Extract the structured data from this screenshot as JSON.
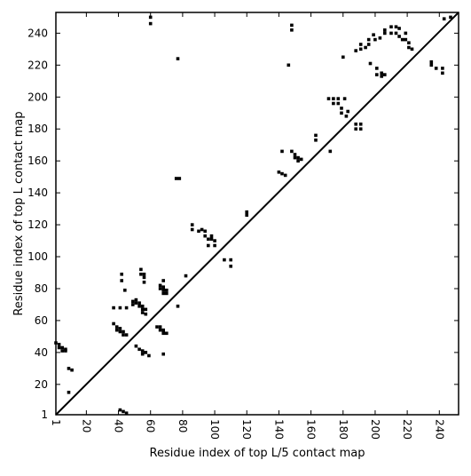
{
  "chart_data": {
    "type": "scatter",
    "title": "",
    "xlabel": "Residue index of top L/5 contact map",
    "ylabel": "Residue index of top L contact map",
    "xlim": [
      1,
      252
    ],
    "ylim": [
      1,
      253
    ],
    "x_ticks": [
      1,
      20,
      40,
      60,
      80,
      100,
      120,
      140,
      160,
      180,
      200,
      220,
      240
    ],
    "y_ticks": [
      1,
      20,
      40,
      60,
      80,
      100,
      120,
      140,
      160,
      180,
      200,
      220,
      240
    ],
    "x_tick_labels": [
      "1",
      "20",
      "40",
      "60",
      "80",
      "100",
      "120",
      "140",
      "160",
      "180",
      "200",
      "220",
      "240"
    ],
    "y_tick_labels": [
      "1",
      "20",
      "40",
      "60",
      "80",
      "100",
      "120",
      "140",
      "160",
      "180",
      "200",
      "220",
      "240"
    ],
    "x_tick_label_rotation": -90,
    "grid": false,
    "legend": "none",
    "diagonal_line": true,
    "colors": {
      "marker": "#000000",
      "background": "#ffffff",
      "diagonal": "#000000"
    },
    "series": [
      {
        "region": "above-diagonal",
        "points": [
          [
            60,
            250
          ],
          [
            60,
            246
          ],
          [
            148,
            245
          ],
          [
            148,
            242
          ],
          [
            77,
            224
          ],
          [
            146,
            220
          ],
          [
            180,
            225
          ],
          [
            200,
            236
          ],
          [
            203,
            237
          ],
          [
            206,
            240
          ],
          [
            206,
            242
          ],
          [
            210,
            244
          ],
          [
            210,
            240
          ],
          [
            213,
            244
          ],
          [
            213,
            240
          ],
          [
            215,
            238
          ],
          [
            217,
            236
          ],
          [
            219,
            236
          ],
          [
            221,
            234
          ],
          [
            221,
            231
          ],
          [
            223,
            230
          ],
          [
            215,
            243
          ],
          [
            219,
            240
          ],
          [
            235,
            222
          ],
          [
            235,
            220
          ],
          [
            238,
            218
          ],
          [
            242,
            218
          ],
          [
            242,
            215
          ],
          [
            247,
            250
          ],
          [
            243,
            249
          ],
          [
            188,
            229
          ],
          [
            191,
            230
          ],
          [
            191,
            233
          ],
          [
            194,
            231
          ],
          [
            196,
            233
          ],
          [
            197,
            221
          ],
          [
            201,
            218
          ],
          [
            204,
            215
          ],
          [
            206,
            214
          ],
          [
            204,
            213
          ],
          [
            201,
            214
          ],
          [
            196,
            236
          ],
          [
            199,
            239
          ],
          [
            171,
            199
          ],
          [
            174,
            199
          ],
          [
            174,
            196
          ],
          [
            177,
            196
          ],
          [
            177,
            199
          ],
          [
            179,
            193
          ],
          [
            181,
            199
          ],
          [
            179,
            190
          ],
          [
            183,
            191
          ],
          [
            182,
            188
          ],
          [
            188,
            183
          ],
          [
            188,
            180
          ],
          [
            191,
            183
          ],
          [
            191,
            180
          ],
          [
            163,
            176
          ],
          [
            163,
            173
          ],
          [
            172,
            166
          ],
          [
            142,
            166
          ],
          [
            148,
            166
          ],
          [
            150,
            164
          ],
          [
            150,
            162
          ],
          [
            152,
            162
          ],
          [
            152,
            160
          ],
          [
            154,
            161
          ],
          [
            140,
            153
          ],
          [
            142,
            152
          ],
          [
            144,
            151
          ],
          [
            76,
            149
          ],
          [
            78,
            149
          ],
          [
            120,
            128
          ],
          [
            120,
            126
          ],
          [
            86,
            120
          ],
          [
            86,
            117
          ],
          [
            90,
            116
          ],
          [
            92,
            117
          ],
          [
            94,
            116
          ],
          [
            94,
            113
          ],
          [
            98,
            113
          ],
          [
            98,
            111
          ],
          [
            96,
            111
          ],
          [
            96,
            107
          ],
          [
            100,
            110
          ],
          [
            100,
            107
          ],
          [
            106,
            98
          ],
          [
            110,
            98
          ],
          [
            110,
            94
          ],
          [
            82,
            88
          ],
          [
            68,
            85
          ],
          [
            66,
            82
          ],
          [
            66,
            80
          ],
          [
            68,
            81
          ],
          [
            68,
            79
          ],
          [
            70,
            79
          ],
          [
            70,
            77
          ],
          [
            68,
            77
          ],
          [
            54,
            92
          ],
          [
            54,
            89
          ],
          [
            56,
            89
          ],
          [
            56,
            87
          ],
          [
            56,
            84
          ],
          [
            42,
            89
          ],
          [
            42,
            85
          ],
          [
            44,
            79
          ],
          [
            49,
            72
          ],
          [
            51,
            73
          ],
          [
            51,
            71
          ],
          [
            53,
            71
          ],
          [
            53,
            69
          ],
          [
            55,
            69
          ],
          [
            55,
            67
          ],
          [
            57,
            67
          ],
          [
            55,
            65
          ],
          [
            57,
            64
          ],
          [
            49,
            70
          ],
          [
            77,
            69
          ],
          [
            37,
            68
          ],
          [
            41,
            68
          ],
          [
            45,
            68
          ],
          [
            37,
            58
          ],
          [
            39,
            56
          ],
          [
            39,
            54
          ],
          [
            41,
            55
          ],
          [
            41,
            53
          ],
          [
            43,
            53
          ],
          [
            43,
            51
          ],
          [
            45,
            51
          ],
          [
            64,
            56
          ],
          [
            66,
            56
          ],
          [
            66,
            54
          ],
          [
            68,
            54
          ],
          [
            68,
            52
          ],
          [
            70,
            52
          ],
          [
            51,
            44
          ],
          [
            53,
            42
          ],
          [
            55,
            41
          ],
          [
            55,
            39
          ],
          [
            57,
            40
          ],
          [
            59,
            38
          ],
          [
            68,
            39
          ],
          [
            1,
            46
          ],
          [
            3,
            45
          ],
          [
            3,
            43
          ],
          [
            5,
            43
          ],
          [
            5,
            41
          ],
          [
            7,
            41
          ],
          [
            7,
            42
          ],
          [
            9,
            30
          ],
          [
            11,
            29
          ],
          [
            9,
            15
          ],
          [
            41,
            4
          ],
          [
            43,
            3
          ],
          [
            45,
            2
          ]
        ]
      }
    ]
  }
}
